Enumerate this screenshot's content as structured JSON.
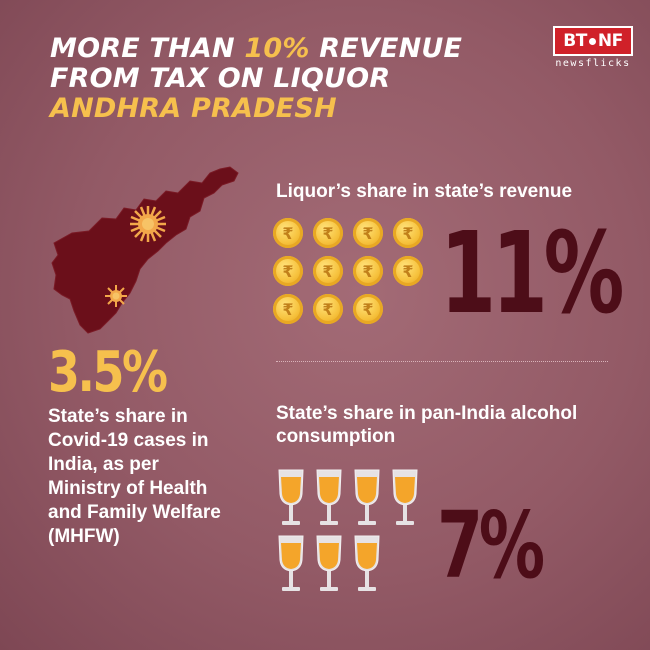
{
  "header": {
    "title_line1_prefix": "MORE THAN ",
    "title_line1_highlight": "10%",
    "title_line1_suffix": " REVENUE",
    "title_line2": "FROM TAX ON LIQUOR",
    "title_line3": "ANDHRA PRADESH"
  },
  "logo": {
    "left": "BT",
    "right": "NF",
    "sub": "newsflicks"
  },
  "covid": {
    "value": "3.5%",
    "description": "State’s share in Covid-19 cases in India, as per Ministry of Health and Family Welfare (MHFW)"
  },
  "revenue": {
    "title": "Liquor’s share in state’s revenue",
    "value": "11%",
    "coin_count": 11,
    "coin_symbol": "₹"
  },
  "alcohol": {
    "title": "State’s share in pan-India alcohol consumption",
    "value": "7%",
    "glass_count": 7
  },
  "colors": {
    "background": "#935a66",
    "accent_yellow": "#f6c04d",
    "dark_number": "#4d0d18",
    "map_fill": "#6b0f1a",
    "logo_red": "#d02129"
  }
}
